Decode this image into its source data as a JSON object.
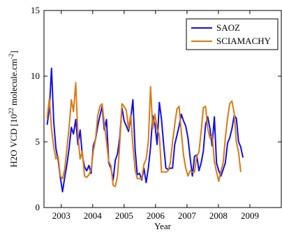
{
  "chart_data": {
    "type": "line",
    "title": "",
    "xlabel": "Year",
    "ylabel_main": "H2O VCD [10",
    "ylabel_sup": "22",
    "ylabel_mid": " molecule.cm",
    "ylabel_sup2": "-2",
    "ylabel_end": "]",
    "xlim": [
      2002.45,
      2010.0
    ],
    "ylim": [
      0,
      15
    ],
    "xticks": [
      2003.0,
      2004.0,
      2005.0,
      2006.0,
      2007.0,
      2008.0,
      2009.0
    ],
    "xtick_labels": [
      "2003",
      "2004",
      "2005",
      "2006",
      "2007",
      "2008",
      "2009"
    ],
    "yticks": [
      0,
      5,
      10,
      15
    ],
    "ytick_labels": [
      "0",
      "5",
      "10",
      "15"
    ],
    "grid": false,
    "legend_position": "top-right",
    "series": [
      {
        "name": "SAOZ",
        "color": "#1010e8",
        "points": [
          [
            2002.55,
            6.3
          ],
          [
            2002.62,
            7.5
          ],
          [
            2002.69,
            10.6
          ],
          [
            2002.76,
            6.5
          ],
          [
            2002.83,
            4.5
          ],
          [
            2002.9,
            3.6
          ],
          [
            2002.97,
            2.3
          ],
          [
            2003.04,
            1.2
          ],
          [
            2003.11,
            2.3
          ],
          [
            2003.18,
            3.3
          ],
          [
            2003.25,
            4.5
          ],
          [
            2003.32,
            6.1
          ],
          [
            2003.39,
            5.6
          ],
          [
            2003.46,
            6.7
          ],
          [
            2003.53,
            4.8
          ],
          [
            2003.6,
            5.9
          ],
          [
            2003.67,
            4.0
          ],
          [
            2003.74,
            3.1
          ],
          [
            2003.81,
            2.8
          ],
          [
            2003.88,
            3.2
          ],
          [
            2003.95,
            2.6
          ],
          [
            2004.02,
            4.7
          ],
          [
            2004.09,
            5.2
          ],
          [
            2004.16,
            6.2
          ],
          [
            2004.23,
            7.0
          ],
          [
            2004.3,
            7.7
          ],
          [
            2004.37,
            5.9
          ],
          [
            2004.44,
            6.7
          ],
          [
            2004.51,
            3.4
          ],
          [
            2004.58,
            3.0
          ],
          [
            2004.65,
            2.1
          ],
          [
            2004.72,
            3.6
          ],
          [
            2004.79,
            4.1
          ],
          [
            2004.86,
            5.3
          ],
          [
            2004.93,
            7.6
          ],
          [
            2005.0,
            6.6
          ],
          [
            2005.07,
            6.2
          ],
          [
            2005.14,
            5.8
          ],
          [
            2005.21,
            6.8
          ],
          [
            2005.28,
            8.2
          ],
          [
            2005.35,
            4.4
          ],
          [
            2005.42,
            2.5
          ],
          [
            2005.49,
            2.6
          ],
          [
            2005.56,
            2.1
          ],
          [
            2005.63,
            3.0
          ],
          [
            2005.7,
            1.9
          ],
          [
            2005.77,
            3.0
          ],
          [
            2005.84,
            4.6
          ],
          [
            2005.91,
            7.0
          ],
          [
            2005.98,
            6.3
          ],
          [
            2006.05,
            4.8
          ],
          [
            2006.12,
            8.0
          ],
          [
            2006.19,
            6.7
          ],
          [
            2006.26,
            4.7
          ],
          [
            2006.33,
            3.0
          ],
          [
            2006.4,
            2.9
          ],
          [
            2006.47,
            3.0
          ],
          [
            2006.54,
            3.0
          ],
          [
            2006.61,
            4.8
          ],
          [
            2006.68,
            5.5
          ],
          [
            2006.75,
            6.2
          ],
          [
            2006.82,
            7.1
          ],
          [
            2006.89,
            6.6
          ],
          [
            2006.96,
            6.2
          ],
          [
            2007.03,
            5.3
          ],
          [
            2007.1,
            3.8
          ],
          [
            2007.17,
            2.4
          ],
          [
            2007.24,
            3.9
          ],
          [
            2007.31,
            4.0
          ],
          [
            2007.38,
            2.8
          ],
          [
            2007.45,
            3.4
          ],
          [
            2007.52,
            4.3
          ],
          [
            2007.59,
            6.3
          ],
          [
            2007.66,
            6.9
          ],
          [
            2007.73,
            6.0
          ],
          [
            2007.8,
            4.7
          ],
          [
            2007.87,
            6.9
          ],
          [
            2007.94,
            3.4
          ],
          [
            2008.01,
            2.8
          ],
          [
            2008.08,
            2.4
          ],
          [
            2008.15,
            2.9
          ],
          [
            2008.22,
            3.4
          ],
          [
            2008.29,
            4.9
          ],
          [
            2008.36,
            5.3
          ],
          [
            2008.43,
            6.0
          ],
          [
            2008.5,
            7.0
          ],
          [
            2008.57,
            6.8
          ],
          [
            2008.64,
            5.0
          ],
          [
            2008.71,
            4.6
          ],
          [
            2008.78,
            3.8
          ]
        ]
      },
      {
        "name": "SCIAMACHY",
        "color": "#d97a14",
        "points": [
          [
            2002.55,
            6.8
          ],
          [
            2002.62,
            8.3
          ],
          [
            2002.69,
            6.0
          ],
          [
            2002.76,
            4.6
          ],
          [
            2002.83,
            3.7
          ],
          [
            2002.9,
            3.9
          ],
          [
            2002.97,
            2.4
          ],
          [
            2003.04,
            2.2
          ],
          [
            2003.11,
            2.9
          ],
          [
            2003.18,
            4.5
          ],
          [
            2003.25,
            6.1
          ],
          [
            2003.32,
            8.2
          ],
          [
            2003.39,
            7.3
          ],
          [
            2003.46,
            9.5
          ],
          [
            2003.53,
            5.5
          ],
          [
            2003.6,
            3.7
          ],
          [
            2003.67,
            4.3
          ],
          [
            2003.74,
            2.4
          ],
          [
            2003.81,
            2.3
          ],
          [
            2003.88,
            2.5
          ],
          [
            2003.95,
            2.9
          ],
          [
            2004.02,
            4.3
          ],
          [
            2004.09,
            5.2
          ],
          [
            2004.16,
            7.0
          ],
          [
            2004.23,
            7.7
          ],
          [
            2004.3,
            7.9
          ],
          [
            2004.37,
            6.4
          ],
          [
            2004.44,
            5.0
          ],
          [
            2004.51,
            3.5
          ],
          [
            2004.58,
            3.2
          ],
          [
            2004.65,
            1.7
          ],
          [
            2004.72,
            1.6
          ],
          [
            2004.79,
            2.4
          ],
          [
            2004.86,
            4.8
          ],
          [
            2004.93,
            7.9
          ],
          [
            2005.0,
            7.7
          ],
          [
            2005.07,
            7.4
          ],
          [
            2005.14,
            6.0
          ],
          [
            2005.21,
            7.1
          ],
          [
            2005.28,
            4.7
          ],
          [
            2005.35,
            2.9
          ],
          [
            2005.42,
            2.2
          ],
          [
            2005.49,
            2.2
          ],
          [
            2005.56,
            2.2
          ],
          [
            2005.63,
            3.3
          ],
          [
            2005.7,
            3.7
          ],
          [
            2005.77,
            5.0
          ],
          [
            2005.84,
            9.2
          ],
          [
            2005.91,
            6.0
          ],
          [
            2005.98,
            7.1
          ],
          [
            2006.05,
            6.0
          ],
          [
            2006.12,
            5.5
          ],
          [
            2006.19,
            2.7
          ],
          [
            2006.26,
            2.7
          ],
          [
            2006.33,
            2.7
          ],
          [
            2006.4,
            2.8
          ],
          [
            2006.47,
            3.4
          ],
          [
            2006.54,
            5.0
          ],
          [
            2006.61,
            6.3
          ],
          [
            2006.68,
            7.5
          ],
          [
            2006.75,
            7.7
          ],
          [
            2006.82,
            5.7
          ],
          [
            2006.89,
            4.0
          ],
          [
            2006.96,
            3.0
          ],
          [
            2007.03,
            2.4
          ],
          [
            2007.1,
            2.8
          ],
          [
            2007.17,
            2.7
          ],
          [
            2007.24,
            2.7
          ],
          [
            2007.31,
            3.9
          ],
          [
            2007.38,
            4.2
          ],
          [
            2007.45,
            5.8
          ],
          [
            2007.52,
            7.6
          ],
          [
            2007.59,
            7.7
          ],
          [
            2007.66,
            6.0
          ],
          [
            2007.73,
            5.3
          ],
          [
            2007.8,
            5.5
          ],
          [
            2007.87,
            3.5
          ],
          [
            2007.94,
            2.7
          ],
          [
            2008.01,
            2.0
          ],
          [
            2008.08,
            2.8
          ],
          [
            2008.15,
            3.4
          ],
          [
            2008.22,
            5.3
          ],
          [
            2008.29,
            6.8
          ],
          [
            2008.36,
            7.9
          ],
          [
            2008.43,
            8.1
          ],
          [
            2008.5,
            7.2
          ],
          [
            2008.57,
            5.0
          ],
          [
            2008.64,
            4.2
          ],
          [
            2008.71,
            2.7
          ]
        ]
      }
    ]
  }
}
